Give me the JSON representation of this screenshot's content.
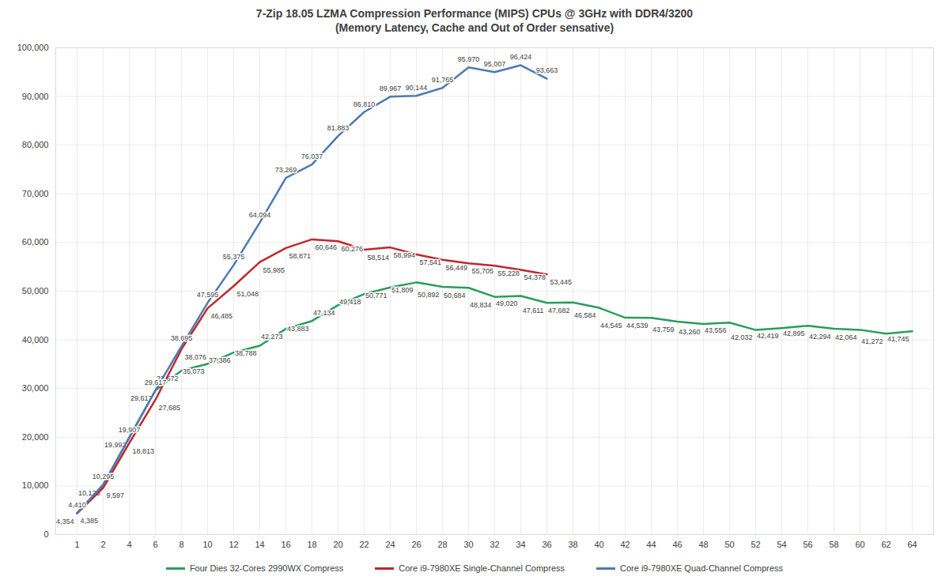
{
  "chart_data": {
    "type": "line",
    "title": "7-Zip 18.05 LZMA Compression Performance (MIPS) CPUs @ 3GHz with DDR4/3200",
    "subtitle": "(Memory Latency, Cache and Out of Order sensative)",
    "categories": [
      "1",
      "2",
      "4",
      "6",
      "8",
      "10",
      "12",
      "14",
      "16",
      "18",
      "20",
      "22",
      "24",
      "26",
      "28",
      "30",
      "32",
      "34",
      "36",
      "38",
      "40",
      "42",
      "44",
      "46",
      "48",
      "50",
      "52",
      "54",
      "56",
      "58",
      "60",
      "62",
      "64"
    ],
    "series": [
      {
        "name": "Four Dies 32-Cores 2990WX Compress",
        "color": "#2a9d5c",
        "values": [
          4354,
          10123,
          19992,
          29617,
          33672,
          35073,
          37386,
          38788,
          42273,
          43883,
          47134,
          49418,
          50771,
          51809,
          50892,
          50684,
          48834,
          49020,
          47611,
          47682,
          46584,
          44545,
          44539,
          43759,
          43260,
          43556,
          42032,
          42419,
          42895,
          42294,
          42064,
          41272,
          41745
        ],
        "value_labels": [
          "4,354",
          "10,123",
          "19,992",
          "29,617",
          "33,672",
          "35,073",
          "37,386",
          "38,788",
          "42,273",
          "43,883",
          "47,134",
          "49,418",
          "50,771",
          "51,809",
          "50,892",
          "50,684",
          "48,834",
          "49,020",
          "47,611",
          "47,682",
          "46,584",
          "44,545",
          "44,539",
          "43,759",
          "43,260",
          "43,556",
          "42,032",
          "42,419",
          "42,895",
          "42,294",
          "42,064",
          "41,272",
          "41,745"
        ]
      },
      {
        "name": "Core i9-7980XE Single-Channel Compress",
        "color": "#c0272d",
        "values": [
          4385,
          9597,
          18813,
          27685,
          38076,
          46485,
          51048,
          55985,
          58871,
          60646,
          60276,
          58514,
          58994,
          57541,
          56449,
          55705,
          55228,
          54378,
          53445,
          null,
          null,
          null,
          null,
          null,
          null,
          null,
          null,
          null,
          null,
          null,
          null,
          null,
          null
        ],
        "value_labels": [
          "4,385",
          "9,597",
          "18,813",
          "27,685",
          "38,076",
          "46,485",
          "51,048",
          "55,985",
          "58,871",
          "60,646",
          "60,276",
          "58,514",
          "58,994",
          "57,541",
          "56,449",
          "55,705",
          "55,228",
          "54,378",
          "53,445",
          null,
          null,
          null,
          null,
          null,
          null,
          null,
          null,
          null,
          null,
          null,
          null,
          null,
          null
        ]
      },
      {
        "name": "Core i9-7980XE Quad-Channel Compress",
        "color": "#4e79b5",
        "values": [
          4410,
          10295,
          19907,
          29617,
          38695,
          47595,
          55375,
          64094,
          73269,
          76037,
          81883,
          86810,
          89967,
          90144,
          91765,
          95970,
          95007,
          96424,
          93663,
          null,
          null,
          null,
          null,
          null,
          null,
          null,
          null,
          null,
          null,
          null,
          null,
          null,
          null
        ],
        "value_labels": [
          "4,410",
          "10,295",
          "19,907",
          "29,617",
          "38,695",
          "47,595",
          "55,375",
          "64,094",
          "73,269",
          "76,037",
          "81,883",
          "86,810",
          "89,967",
          "90,144",
          "91,765",
          "95,970",
          "95,007",
          "96,424",
          "93,663",
          null,
          null,
          null,
          null,
          null,
          null,
          null,
          null,
          null,
          null,
          null,
          null,
          null,
          null
        ]
      }
    ],
    "ylim": [
      0,
      100000
    ],
    "yticks": [
      0,
      {
        "value": 10000,
        "label": "10,000"
      },
      {
        "value": 20000,
        "label": "20,000"
      },
      {
        "value": 30000,
        "label": "30,000"
      },
      {
        "value": 40000,
        "label": "40,000"
      },
      {
        "value": 50000,
        "label": "50,000"
      },
      {
        "value": 60000,
        "label": "60,000"
      },
      {
        "value": 70000,
        "label": "70,000"
      },
      {
        "value": 80000,
        "label": "80,000"
      },
      {
        "value": 90000,
        "label": "90,000"
      },
      {
        "value": 100000,
        "label": "100,000"
      }
    ],
    "grid": true,
    "legend": "bottom",
    "data_labels": true
  }
}
